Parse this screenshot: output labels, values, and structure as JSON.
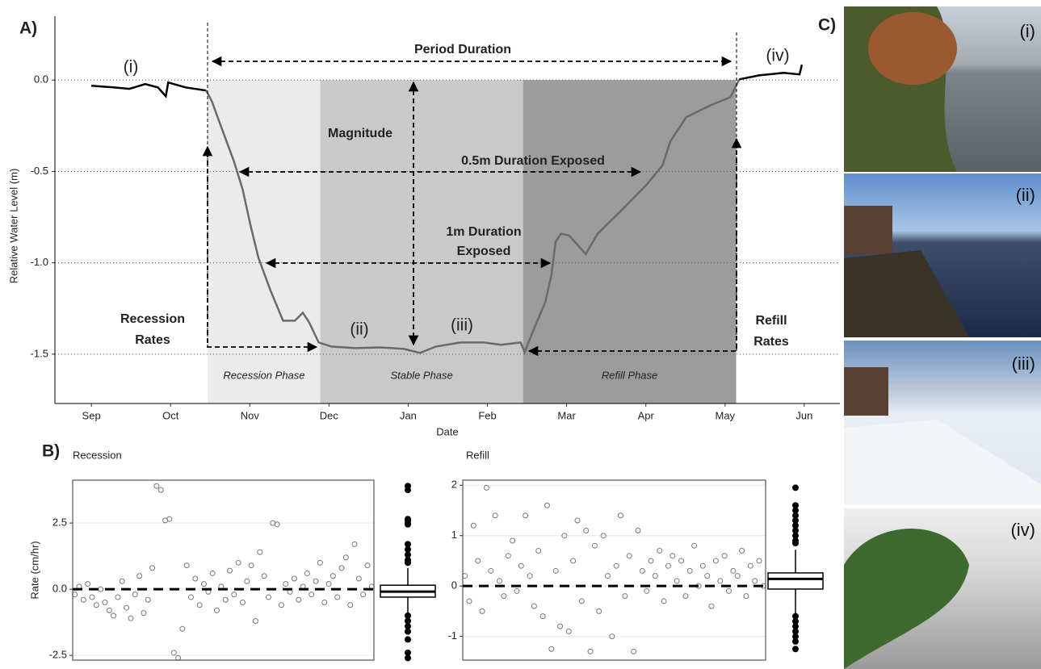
{
  "chart_data": [
    {
      "type": "line",
      "panel": "A)",
      "xlabel": "Date",
      "ylabel": "Relative Water Level (m)",
      "xlim": [
        -0.46,
        9.45
      ],
      "ylim": [
        -1.77,
        0.35
      ],
      "xticks": [
        {
          "value": 0,
          "label": "Sep"
        },
        {
          "value": 1,
          "label": "Oct"
        },
        {
          "value": 2,
          "label": "Nov"
        },
        {
          "value": 3,
          "label": "Dec"
        },
        {
          "value": 4,
          "label": "Jan"
        },
        {
          "value": 5,
          "label": "Feb"
        },
        {
          "value": 6,
          "label": "Mar"
        },
        {
          "value": 7,
          "label": "Apr"
        },
        {
          "value": 8,
          "label": "May"
        },
        {
          "value": 9,
          "label": "Jun"
        }
      ],
      "yticks": [
        {
          "value": 0,
          "label": "0.0"
        },
        -0.5,
        {
          "value": -1,
          "label": "-1.0"
        },
        -1.5
      ],
      "grid": true,
      "phases": [
        {
          "label": "Recession Phase",
          "start": 1.47,
          "end": 2.89,
          "color": "#ebebeb"
        },
        {
          "label": "Stable Phase",
          "start": 2.89,
          "end": 5.45,
          "color": "#c9c9c9"
        },
        {
          "label": "Refill Phase",
          "start": 5.45,
          "end": 8.14,
          "color": "#9c9c9c"
        }
      ],
      "series": [
        {
          "color": "#000000",
          "x": [
            0,
            0.28,
            0.48,
            0.68,
            0.84,
            0.94,
            0.97,
            1.19,
            1.45
          ],
          "values": [
            -0.031,
            -0.04,
            -0.048,
            -0.022,
            -0.04,
            -0.088,
            -0.013,
            -0.04,
            -0.057
          ]
        },
        {
          "color": "#6a6a6a",
          "x": [
            1.45,
            1.52,
            1.65,
            1.8,
            1.91,
            2.01,
            2.11,
            2.26,
            2.42,
            2.57,
            2.67,
            2.75,
            2.87,
            3.03,
            3.33,
            3.64,
            3.94,
            4.15,
            4.35,
            4.66,
            4.96,
            5.17,
            5.42,
            5.47,
            5.58,
            5.73,
            5.81,
            5.86,
            5.93,
            6.03,
            6.24,
            6.39,
            6.7,
            7.0,
            7.21,
            7.31,
            7.51,
            7.82,
            8.07,
            8.18
          ],
          "values": [
            -0.057,
            -0.115,
            -0.269,
            -0.445,
            -0.599,
            -0.797,
            -0.974,
            -1.15,
            -1.317,
            -1.317,
            -1.273,
            -1.326,
            -1.436,
            -1.458,
            -1.467,
            -1.463,
            -1.471,
            -1.493,
            -1.458,
            -1.436,
            -1.436,
            -1.449,
            -1.436,
            -1.489,
            -1.37,
            -1.216,
            -1.062,
            -0.885,
            -0.841,
            -0.85,
            -0.952,
            -0.841,
            -0.709,
            -0.577,
            -0.467,
            -0.335,
            -0.203,
            -0.137,
            -0.093,
            0.004
          ]
        },
        {
          "color": "#000000",
          "x": [
            8.18,
            8.43,
            8.74,
            8.94,
            8.97
          ],
          "values": [
            0.004,
            0.026,
            0.04,
            0.031,
            0.084
          ]
        }
      ],
      "annotations": {
        "period": "Period Duration",
        "magnitude": "Magnitude",
        "d05": "0.5m Duration Exposed",
        "d1a": "1m Duration",
        "d1b": "Exposed",
        "rec_a": "Recession",
        "rec_b": "Rates",
        "ref_a": "Refill",
        "ref_b": "Rates",
        "i": "(i)",
        "ii": "(ii)",
        "iii": "(iii)",
        "iv": "(iv)"
      }
    },
    {
      "type": "scatter",
      "panel": "B)",
      "title": "Recession",
      "ylabel": "Rate (cm/hr)",
      "ylim": [
        -2.68,
        4.12
      ],
      "yticks": [
        -2.5,
        {
          "value": 0,
          "label": "0.0"
        },
        2.5
      ],
      "reference_line": 0,
      "point_color": "#777777",
      "values": [
        -0.2,
        0.1,
        -0.4,
        0.2,
        -0.3,
        -0.6,
        0.0,
        -0.5,
        -0.8,
        -1.0,
        -0.3,
        0.3,
        -0.7,
        -1.1,
        -0.2,
        0.5,
        -0.9,
        -0.4,
        0.8,
        3.9,
        3.75,
        2.6,
        2.65,
        -2.4,
        -2.6,
        -1.5,
        0.9,
        -0.3,
        0.4,
        -0.6,
        0.2,
        -0.1,
        0.6,
        -0.8,
        0.1,
        -0.4,
        0.7,
        -0.2,
        1.0,
        -0.5,
        0.3,
        0.9,
        -1.2,
        1.4,
        0.5,
        -0.3,
        2.5,
        2.45,
        -0.6,
        0.2,
        -0.1,
        0.4,
        -0.4,
        0.1,
        0.6,
        -0.2,
        0.3,
        1.0,
        -0.5,
        0.2,
        0.5,
        -0.3,
        0.8,
        1.2,
        -0.6,
        1.7,
        0.4,
        -0.2,
        0.9,
        0.1
      ],
      "box": {
        "whisker_low": -0.9,
        "q1": -0.3,
        "median": -0.09,
        "q3": 0.15,
        "whisker_high": 0.8,
        "outliers": [
          3.9,
          3.75,
          2.65,
          2.6,
          2.5,
          2.45,
          1.7,
          1.5,
          1.3,
          1.1,
          1.0,
          -1.0,
          -1.2,
          -1.4,
          -1.6,
          -1.9,
          -2.4,
          -2.6
        ]
      }
    },
    {
      "type": "scatter",
      "title": "Refill",
      "ylim": [
        -1.47,
        2.1
      ],
      "yticks": [
        -1,
        0,
        1,
        2
      ],
      "reference_line": 0,
      "point_color": "#777777",
      "values": [
        0.2,
        -0.3,
        1.2,
        0.5,
        -0.5,
        1.95,
        0.3,
        1.4,
        0.1,
        -0.2,
        0.6,
        0.9,
        -0.1,
        0.4,
        1.4,
        0.2,
        -0.4,
        0.7,
        -0.6,
        1.6,
        -1.25,
        0.3,
        -0.8,
        1.0,
        -0.9,
        0.5,
        1.3,
        -0.3,
        1.1,
        -1.3,
        0.8,
        -0.5,
        1.0,
        0.2,
        -1.0,
        0.4,
        1.4,
        -0.2,
        0.6,
        -1.3,
        1.1,
        0.3,
        -0.1,
        0.5,
        0.2,
        0.7,
        -0.3,
        0.4,
        0.6,
        0.1,
        0.5,
        -0.2,
        0.3,
        0.8,
        0.0,
        0.4,
        0.2,
        -0.4,
        0.5,
        0.1,
        0.6,
        -0.1,
        0.3,
        0.2,
        0.7,
        -0.2,
        0.4,
        0.1,
        0.5,
        0.0
      ],
      "box": {
        "whisker_low": -0.55,
        "q1": -0.06,
        "median": 0.14,
        "q3": 0.26,
        "whisker_high": 0.72,
        "outliers": [
          1.95,
          1.6,
          1.5,
          1.4,
          1.3,
          1.2,
          1.1,
          1.0,
          0.9,
          0.85,
          -0.6,
          -0.7,
          -0.8,
          -0.9,
          -1.0,
          -1.1,
          -1.25
        ]
      }
    }
  ],
  "photos": {
    "panel": "C)",
    "labels": [
      "(i)",
      "(ii)",
      "(iii)",
      "(iv)"
    ]
  }
}
